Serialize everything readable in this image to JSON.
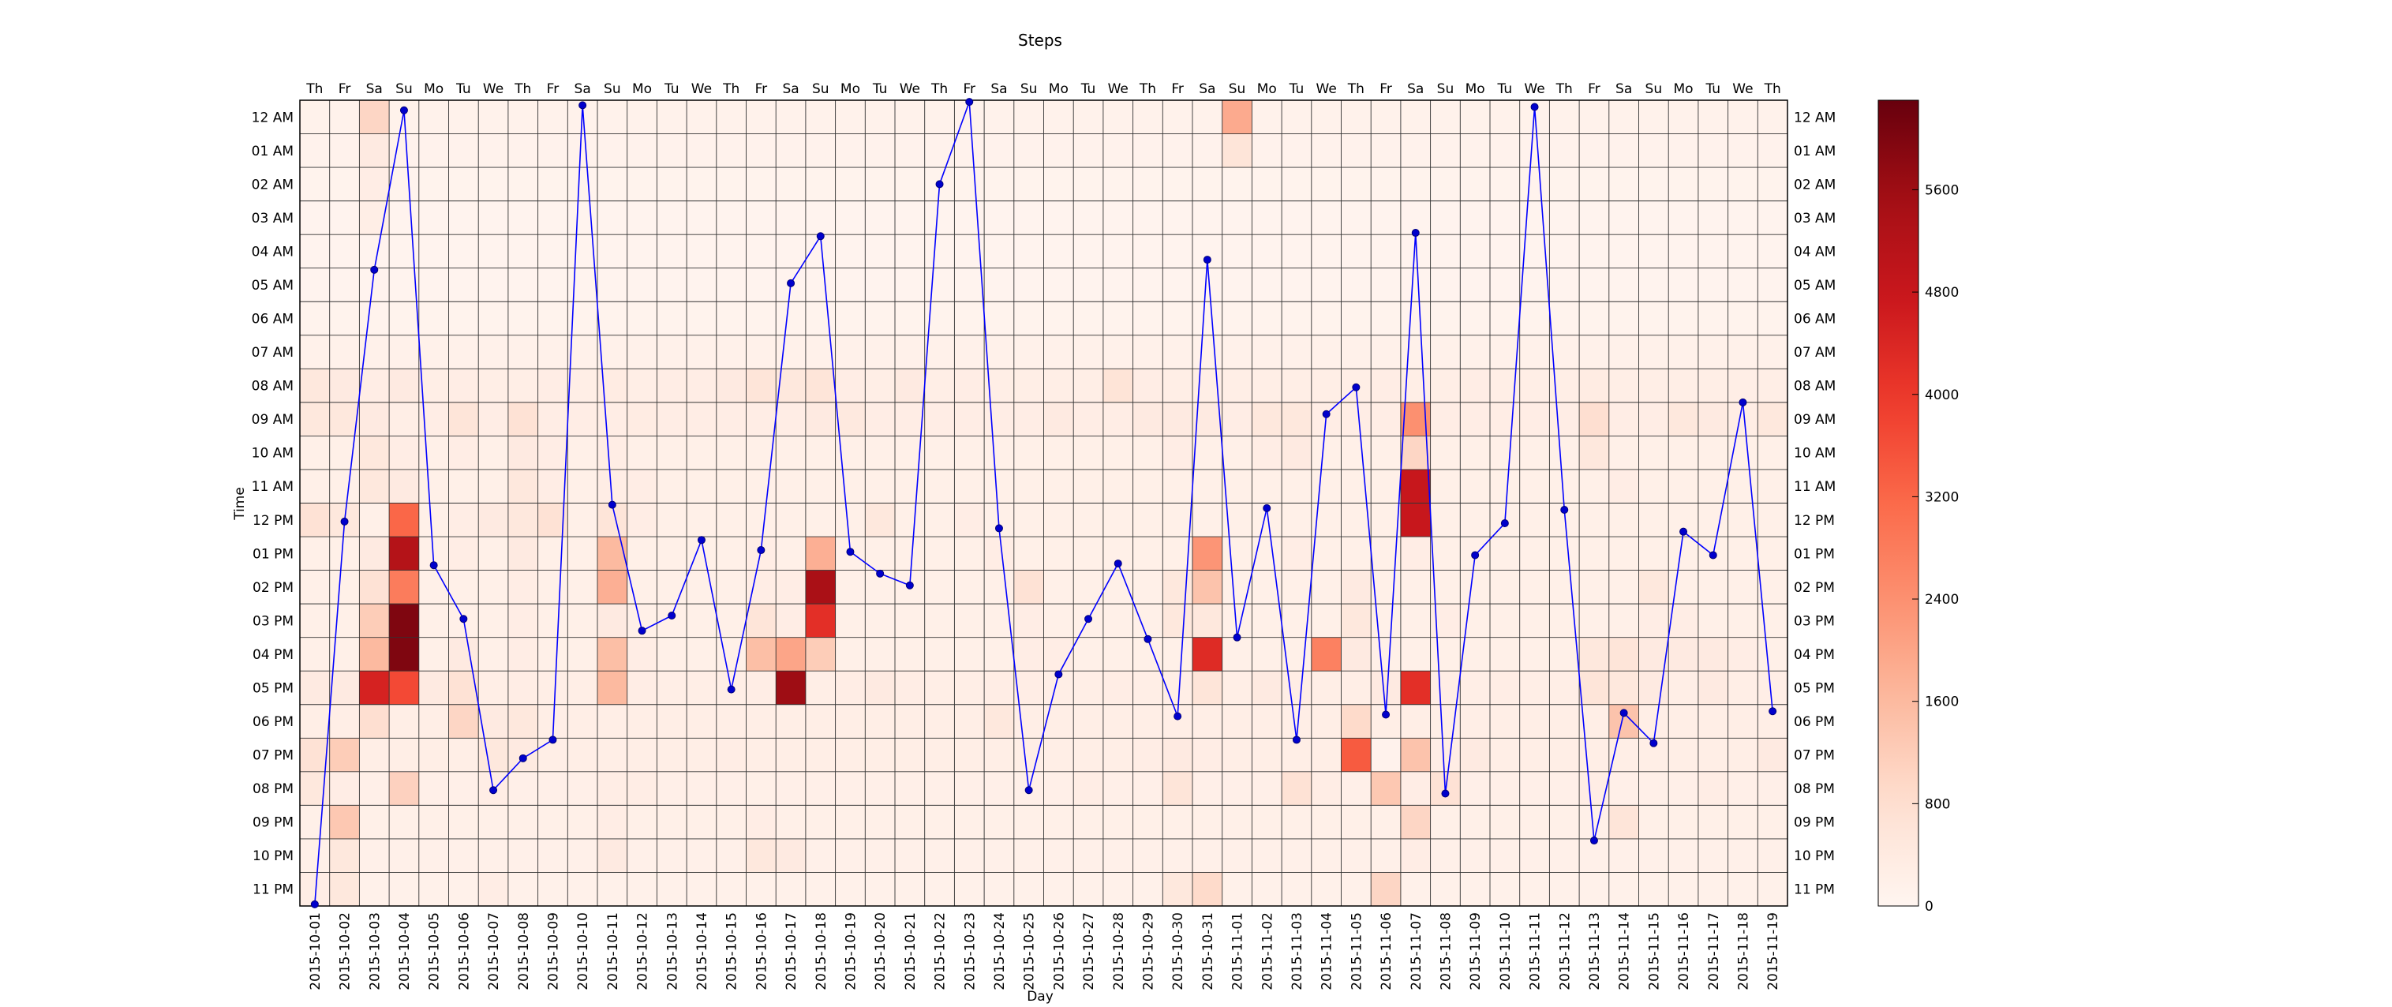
{
  "chart_data": {
    "type": "heatmap",
    "title": "Steps",
    "xlabel": "Day",
    "ylabel": "Time",
    "days": [
      "2015-10-01",
      "2015-10-02",
      "2015-10-03",
      "2015-10-04",
      "2015-10-05",
      "2015-10-06",
      "2015-10-07",
      "2015-10-08",
      "2015-10-09",
      "2015-10-10",
      "2015-10-11",
      "2015-10-12",
      "2015-10-13",
      "2015-10-14",
      "2015-10-15",
      "2015-10-16",
      "2015-10-17",
      "2015-10-18",
      "2015-10-19",
      "2015-10-20",
      "2015-10-21",
      "2015-10-22",
      "2015-10-23",
      "2015-10-24",
      "2015-10-25",
      "2015-10-26",
      "2015-10-27",
      "2015-10-28",
      "2015-10-29",
      "2015-10-30",
      "2015-10-31",
      "2015-11-01",
      "2015-11-02",
      "2015-11-03",
      "2015-11-04",
      "2015-11-05",
      "2015-11-06",
      "2015-11-07",
      "2015-11-08",
      "2015-11-09",
      "2015-11-10",
      "2015-11-11",
      "2015-11-12",
      "2015-11-13",
      "2015-11-14",
      "2015-11-15",
      "2015-11-16",
      "2015-11-17",
      "2015-11-18",
      "2015-11-19"
    ],
    "weekdays": [
      "Th",
      "Fr",
      "Sa",
      "Su",
      "Mo",
      "Tu",
      "We",
      "Th",
      "Fr",
      "Sa",
      "Su",
      "Mo",
      "Tu",
      "We",
      "Th",
      "Fr",
      "Sa",
      "Su",
      "Mo",
      "Tu",
      "We",
      "Th",
      "Fr",
      "Sa",
      "Su",
      "Mo",
      "Tu",
      "We",
      "Th",
      "Fr",
      "Sa",
      "Su",
      "Mo",
      "Tu",
      "We",
      "Th",
      "Fr",
      "Sa",
      "Su",
      "Mo",
      "Tu",
      "We",
      "Th",
      "Fr",
      "Sa",
      "Su",
      "Mo",
      "Tu",
      "We",
      "Th"
    ],
    "hours": [
      "12 AM",
      "01 AM",
      "02 AM",
      "03 AM",
      "04 AM",
      "05 AM",
      "06 AM",
      "07 AM",
      "08 AM",
      "09 AM",
      "10 AM",
      "11 AM",
      "12 PM",
      "01 PM",
      "02 PM",
      "03 PM",
      "04 PM",
      "05 PM",
      "06 PM",
      "07 PM",
      "08 PM",
      "09 PM",
      "10 PM",
      "11 PM"
    ],
    "overrides": [
      [
        0,
        2,
        1000
      ],
      [
        1,
        2,
        400
      ],
      [
        2,
        2,
        300
      ],
      [
        3,
        2,
        250
      ],
      [
        8,
        0,
        500
      ],
      [
        8,
        1,
        400
      ],
      [
        8,
        2,
        300
      ],
      [
        8,
        3,
        400
      ],
      [
        8,
        5,
        300
      ],
      [
        8,
        8,
        300
      ],
      [
        8,
        10,
        350
      ],
      [
        8,
        12,
        300
      ],
      [
        8,
        13,
        300
      ],
      [
        8,
        14,
        400
      ],
      [
        8,
        15,
        600
      ],
      [
        8,
        16,
        500
      ],
      [
        8,
        17,
        600
      ],
      [
        8,
        18,
        300
      ],
      [
        8,
        20,
        400
      ],
      [
        8,
        22,
        300
      ],
      [
        8,
        27,
        650
      ],
      [
        8,
        28,
        300
      ],
      [
        8,
        36,
        300
      ],
      [
        8,
        39,
        300
      ],
      [
        8,
        43,
        350
      ],
      [
        9,
        0,
        500
      ],
      [
        9,
        1,
        500
      ],
      [
        9,
        2,
        400
      ],
      [
        9,
        3,
        250
      ],
      [
        9,
        4,
        300
      ],
      [
        9,
        5,
        600
      ],
      [
        9,
        7,
        700
      ],
      [
        9,
        8,
        300
      ],
      [
        9,
        10,
        300
      ],
      [
        9,
        11,
        350
      ],
      [
        9,
        17,
        400
      ],
      [
        9,
        18,
        450
      ],
      [
        9,
        25,
        400
      ],
      [
        9,
        26,
        300
      ],
      [
        9,
        28,
        400
      ],
      [
        9,
        29,
        400
      ],
      [
        9,
        30,
        400
      ],
      [
        9,
        32,
        500
      ],
      [
        9,
        33,
        500
      ],
      [
        9,
        37,
        2400
      ],
      [
        9,
        38,
        300
      ],
      [
        9,
        43,
        800
      ],
      [
        9,
        46,
        500
      ],
      [
        9,
        47,
        400
      ],
      [
        9,
        49,
        500
      ],
      [
        10,
        2,
        500
      ],
      [
        10,
        3,
        300
      ],
      [
        10,
        5,
        300
      ],
      [
        10,
        7,
        400
      ],
      [
        10,
        8,
        300
      ],
      [
        10,
        10,
        300
      ],
      [
        10,
        29,
        300
      ],
      [
        10,
        32,
        300
      ],
      [
        10,
        33,
        400
      ],
      [
        10,
        37,
        1000
      ],
      [
        10,
        43,
        500
      ],
      [
        11,
        2,
        500
      ],
      [
        11,
        3,
        400
      ],
      [
        11,
        7,
        500
      ],
      [
        11,
        8,
        300
      ],
      [
        11,
        10,
        300
      ],
      [
        11,
        11,
        300
      ],
      [
        11,
        37,
        4800
      ],
      [
        11,
        44,
        300
      ],
      [
        12,
        0,
        700
      ],
      [
        12,
        1,
        500
      ],
      [
        12,
        3,
        3200
      ],
      [
        12,
        5,
        300
      ],
      [
        12,
        6,
        400
      ],
      [
        12,
        7,
        500
      ],
      [
        12,
        8,
        700
      ],
      [
        12,
        10,
        600
      ],
      [
        12,
        11,
        300
      ],
      [
        12,
        19,
        500
      ],
      [
        12,
        22,
        300
      ],
      [
        12,
        37,
        4800
      ],
      [
        13,
        2,
        400
      ],
      [
        13,
        3,
        5200
      ],
      [
        13,
        5,
        300
      ],
      [
        13,
        7,
        400
      ],
      [
        13,
        10,
        1600
      ],
      [
        13,
        15,
        300
      ],
      [
        13,
        17,
        1800
      ],
      [
        13,
        23,
        300
      ],
      [
        13,
        30,
        2300
      ],
      [
        13,
        33,
        300
      ],
      [
        13,
        37,
        300
      ],
      [
        14,
        2,
        700
      ],
      [
        14,
        3,
        2800
      ],
      [
        14,
        7,
        300
      ],
      [
        14,
        10,
        1800
      ],
      [
        14,
        15,
        300
      ],
      [
        14,
        16,
        300
      ],
      [
        14,
        17,
        5400
      ],
      [
        14,
        24,
        700
      ],
      [
        14,
        29,
        500
      ],
      [
        14,
        30,
        1400
      ],
      [
        14,
        35,
        400
      ],
      [
        14,
        45,
        500
      ],
      [
        15,
        2,
        1200
      ],
      [
        15,
        3,
        6000
      ],
      [
        15,
        7,
        300
      ],
      [
        15,
        10,
        400
      ],
      [
        15,
        15,
        600
      ],
      [
        15,
        16,
        300
      ],
      [
        15,
        17,
        4200
      ],
      [
        15,
        24,
        300
      ],
      [
        15,
        29,
        500
      ],
      [
        15,
        30,
        500
      ],
      [
        15,
        35,
        500
      ],
      [
        15,
        38,
        300
      ],
      [
        15,
        45,
        300
      ],
      [
        15,
        46,
        300
      ],
      [
        16,
        2,
        1600
      ],
      [
        16,
        3,
        6000
      ],
      [
        16,
        5,
        400
      ],
      [
        16,
        7,
        300
      ],
      [
        16,
        10,
        1500
      ],
      [
        16,
        11,
        300
      ],
      [
        16,
        15,
        1500
      ],
      [
        16,
        16,
        2000
      ],
      [
        16,
        17,
        1200
      ],
      [
        16,
        24,
        300
      ],
      [
        16,
        25,
        300
      ],
      [
        16,
        30,
        4300
      ],
      [
        16,
        34,
        2700
      ],
      [
        16,
        35,
        400
      ],
      [
        16,
        43,
        500
      ],
      [
        16,
        44,
        600
      ],
      [
        16,
        45,
        400
      ],
      [
        16,
        46,
        400
      ],
      [
        16,
        47,
        400
      ],
      [
        16,
        48,
        300
      ],
      [
        17,
        0,
        400
      ],
      [
        17,
        1,
        400
      ],
      [
        17,
        2,
        4500
      ],
      [
        17,
        3,
        3700
      ],
      [
        17,
        4,
        400
      ],
      [
        17,
        5,
        700
      ],
      [
        17,
        7,
        300
      ],
      [
        17,
        10,
        1600
      ],
      [
        17,
        11,
        300
      ],
      [
        17,
        15,
        300
      ],
      [
        17,
        16,
        5600
      ],
      [
        17,
        18,
        300
      ],
      [
        17,
        19,
        400
      ],
      [
        17,
        20,
        300
      ],
      [
        17,
        23,
        300
      ],
      [
        17,
        24,
        300
      ],
      [
        17,
        27,
        300
      ],
      [
        17,
        30,
        600
      ],
      [
        17,
        32,
        400
      ],
      [
        17,
        33,
        300
      ],
      [
        17,
        36,
        400
      ],
      [
        17,
        37,
        4200
      ],
      [
        17,
        38,
        300
      ],
      [
        17,
        40,
        300
      ],
      [
        17,
        43,
        600
      ],
      [
        17,
        44,
        500
      ],
      [
        17,
        45,
        400
      ],
      [
        17,
        47,
        400
      ],
      [
        18,
        2,
        800
      ],
      [
        18,
        5,
        1000
      ],
      [
        18,
        6,
        400
      ],
      [
        18,
        7,
        500
      ],
      [
        18,
        23,
        500
      ],
      [
        18,
        35,
        900
      ],
      [
        18,
        44,
        1400
      ],
      [
        19,
        0,
        700
      ],
      [
        19,
        1,
        1200
      ],
      [
        19,
        6,
        500
      ],
      [
        19,
        7,
        400
      ],
      [
        19,
        14,
        300
      ],
      [
        19,
        28,
        300
      ],
      [
        19,
        29,
        400
      ],
      [
        19,
        30,
        300
      ],
      [
        19,
        35,
        3400
      ],
      [
        19,
        36,
        100
      ],
      [
        19,
        37,
        1400
      ],
      [
        19,
        38,
        300
      ],
      [
        19,
        39,
        400
      ],
      [
        19,
        49,
        400
      ],
      [
        20,
        0,
        500
      ],
      [
        20,
        1,
        300
      ],
      [
        20,
        3,
        1100
      ],
      [
        20,
        6,
        300
      ],
      [
        20,
        10,
        300
      ],
      [
        20,
        11,
        300
      ],
      [
        20,
        15,
        200
      ],
      [
        20,
        26,
        300
      ],
      [
        20,
        29,
        600
      ],
      [
        20,
        33,
        700
      ],
      [
        20,
        34,
        300
      ],
      [
        20,
        36,
        1300
      ],
      [
        20,
        37,
        300
      ],
      [
        20,
        38,
        700
      ],
      [
        20,
        43,
        300
      ],
      [
        20,
        47,
        300
      ],
      [
        21,
        1,
        1300
      ],
      [
        21,
        10,
        300
      ],
      [
        21,
        15,
        300
      ],
      [
        21,
        37,
        1000
      ],
      [
        21,
        44,
        600
      ],
      [
        22,
        0,
        200
      ],
      [
        22,
        1,
        500
      ],
      [
        22,
        10,
        400
      ],
      [
        22,
        15,
        500
      ],
      [
        22,
        16,
        400
      ],
      [
        22,
        37,
        300
      ],
      [
        23,
        0,
        300
      ],
      [
        23,
        1,
        500
      ],
      [
        23,
        6,
        300
      ],
      [
        23,
        29,
        500
      ],
      [
        23,
        30,
        900
      ],
      [
        23,
        36,
        1000
      ]
    ],
    "row_base": [
      120,
      100,
      80,
      60,
      60,
      60,
      80,
      150,
      250,
      300,
      200,
      200,
      200,
      200,
      200,
      200,
      200,
      250,
      250,
      250,
      220,
      200,
      180,
      150
    ],
    "cell_overrides_00": [
      [
        0,
        31,
        1900
      ],
      [
        1,
        31,
        600
      ]
    ],
    "colorbar": {
      "ticks": [
        0,
        800,
        1600,
        2400,
        3200,
        4000,
        4800,
        5600
      ],
      "vmin": 0,
      "vmax": 6300,
      "cmap": "Reds"
    },
    "line_series": {
      "name": "",
      "values": [
        23.95,
        12.55,
        5.05,
        0.3,
        13.85,
        15.45,
        20.55,
        19.6,
        19.05,
        0.15,
        12.05,
        15.8,
        15.35,
        13.1,
        17.55,
        13.4,
        5.45,
        4.05,
        13.45,
        14.1,
        14.45,
        2.5,
        0.05,
        12.75,
        20.55,
        17.1,
        15.45,
        13.8,
        16.05,
        18.35,
        4.75,
        16.0,
        12.15,
        19.05,
        9.35,
        8.55,
        18.3,
        3.95,
        20.65,
        13.55,
        12.6,
        0.2,
        12.2,
        22.05,
        18.25,
        19.15,
        12.85,
        13.55,
        9.0,
        18.2
      ],
      "color": "#0000ff",
      "ylim": [
        0,
        24
      ]
    },
    "grid": true
  }
}
